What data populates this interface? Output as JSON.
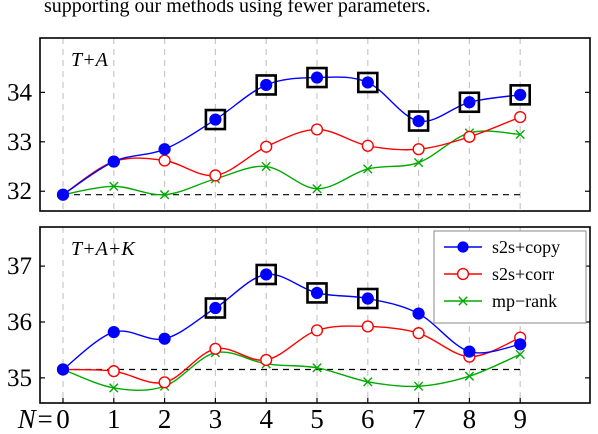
{
  "caption_fragment": "supporting our methods using fewer parameters.",
  "colors": {
    "s2s_copy": "#0000ff",
    "s2s_corr": "#ff0000",
    "mp_rank": "#00aa00",
    "grid": "#c8c8c8"
  },
  "chart_data": [
    {
      "type": "line",
      "title": "T+A",
      "x": [
        0,
        1,
        2,
        3,
        4,
        5,
        6,
        7,
        8,
        9
      ],
      "ylim": [
        31.6,
        35.1
      ],
      "yticks": [
        "32",
        "33",
        "34"
      ],
      "grid": "vertical dashed",
      "baseline": 31.93,
      "series": [
        {
          "name": "s2s+copy",
          "marker": "filled-circle",
          "values": [
            31.93,
            32.6,
            32.85,
            33.45,
            34.15,
            34.3,
            34.2,
            33.42,
            33.8,
            33.95
          ]
        },
        {
          "name": "s2s+corr",
          "marker": "open-circle",
          "values": [
            31.93,
            32.6,
            32.62,
            32.32,
            32.9,
            33.25,
            32.92,
            32.85,
            33.1,
            33.5
          ]
        },
        {
          "name": "mp−rank",
          "marker": "cross",
          "values": [
            31.93,
            32.1,
            31.93,
            32.25,
            32.5,
            32.05,
            32.45,
            32.58,
            33.18,
            33.15
          ]
        }
      ],
      "highlighted_x": [
        3,
        4,
        5,
        6,
        7,
        8,
        9
      ]
    },
    {
      "type": "line",
      "title": "T+A+K",
      "x": [
        0,
        1,
        2,
        3,
        4,
        5,
        6,
        7,
        8,
        9
      ],
      "ylim": [
        34.55,
        37.7
      ],
      "yticks": [
        "35",
        "36",
        "37"
      ],
      "grid": "vertical dashed",
      "baseline": 35.15,
      "legend": "top-right",
      "xlabel_prefix": "N=",
      "xticks": [
        "0",
        "1",
        "2",
        "3",
        "4",
        "5",
        "6",
        "7",
        "8",
        "9"
      ],
      "series": [
        {
          "name": "s2s+copy",
          "marker": "filled-circle",
          "values": [
            35.15,
            35.82,
            35.7,
            36.25,
            36.85,
            36.52,
            36.42,
            36.15,
            35.47,
            35.6
          ]
        },
        {
          "name": "s2s+corr",
          "marker": "open-circle",
          "values": [
            35.15,
            35.12,
            34.92,
            35.52,
            35.32,
            35.85,
            35.92,
            35.8,
            35.38,
            35.72
          ]
        },
        {
          "name": "mp−rank",
          "marker": "cross",
          "values": [
            35.15,
            34.82,
            34.85,
            35.45,
            35.25,
            35.18,
            34.93,
            34.85,
            35.03,
            35.42
          ]
        }
      ],
      "highlighted_x": [
        3,
        4,
        5,
        6
      ]
    }
  ]
}
